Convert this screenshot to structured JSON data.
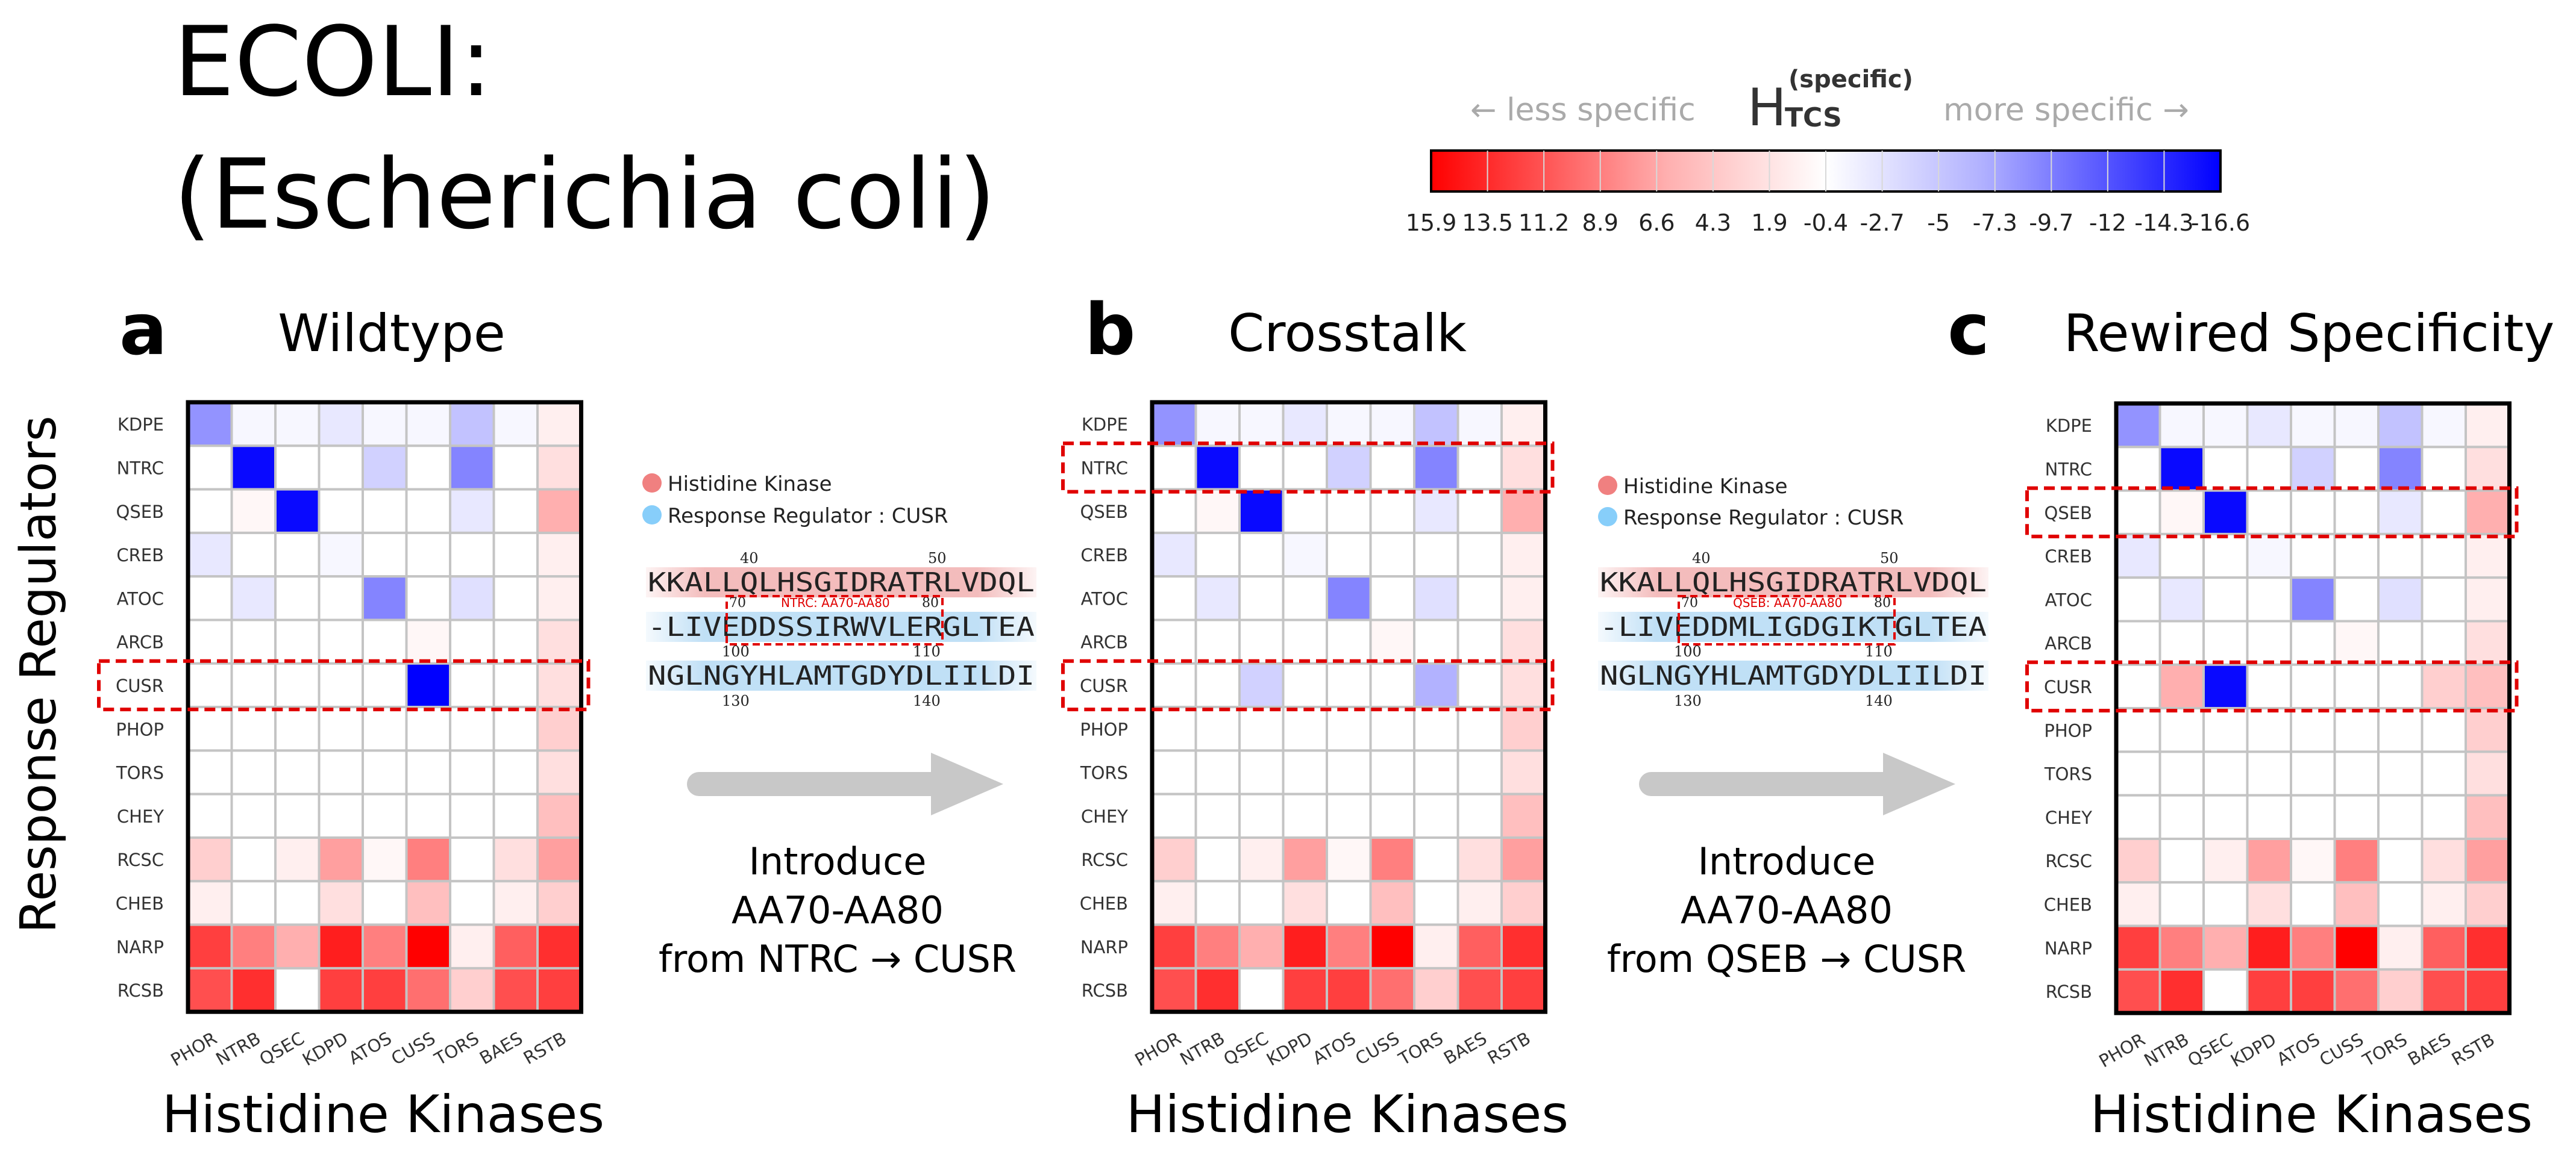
{
  "title_line1": "ECOLI:",
  "title_line2": "(Escherichia coli)",
  "colorbar": {
    "symbol": "H",
    "sub": "TCS",
    "sup": "(specific)",
    "left_note": "← less specific",
    "right_note": "more specific →",
    "ticks": [
      "15.9",
      "13.5",
      "11.2",
      "8.9",
      "6.6",
      "4.3",
      "1.9",
      "-0.4",
      "-2.7",
      "-5",
      "-7.3",
      "-9.7",
      "-12",
      "-14.3",
      "-16.6"
    ],
    "colors": {
      "positive": "#ff0000",
      "neutral": "#ffffff",
      "negative": "#0000ff"
    },
    "min": -16.6,
    "max": 15.9
  },
  "y_axis_label": "Response Regulators",
  "chart_data": {
    "type": "heatmap",
    "rows": [
      "KDPE",
      "NTRC",
      "QSEB",
      "CREB",
      "ATOC",
      "ARCB",
      "CUSR",
      "PHOP",
      "TORS",
      "CHEY",
      "RCSC",
      "CHEB",
      "NARP",
      "RCSB"
    ],
    "columns": [
      "PHOR",
      "NTRB",
      "QSEC",
      "KDPD",
      "ATOS",
      "CUSS",
      "TORS",
      "BAES",
      "RSTB"
    ],
    "xlabel": "Histidine Kinases",
    "ylabel": "Response Regulators",
    "panels": [
      {
        "letter": "a",
        "title": "Wildtype",
        "highlight_rows": [
          "CUSR"
        ],
        "values": [
          [
            -7,
            -0.5,
            -0.5,
            -1.5,
            -0.5,
            -0.5,
            -4,
            -0.5,
            1
          ],
          [
            0,
            -16,
            0,
            0,
            -3,
            0,
            -8,
            0,
            2
          ],
          [
            0,
            0.5,
            -16,
            0,
            0,
            0,
            -1.5,
            0,
            5
          ],
          [
            -1.5,
            0,
            0,
            -0.5,
            0,
            0,
            0,
            0,
            1
          ],
          [
            0,
            -1.5,
            0,
            0,
            -8,
            0,
            -2,
            0,
            1
          ],
          [
            0,
            0,
            0,
            0,
            0,
            0.5,
            0,
            0,
            2
          ],
          [
            0,
            0,
            0,
            0,
            0,
            -16.6,
            0,
            0,
            2
          ],
          [
            0,
            0,
            0,
            0,
            0,
            0,
            0,
            0,
            3
          ],
          [
            0,
            0,
            0,
            0,
            0,
            0,
            0,
            0,
            2
          ],
          [
            0,
            0,
            0,
            0,
            0,
            0,
            0,
            0,
            4
          ],
          [
            3,
            0,
            1,
            6,
            0.5,
            8,
            0,
            2,
            6
          ],
          [
            1,
            0,
            0,
            2,
            0,
            4,
            0,
            1,
            3
          ],
          [
            12,
            8,
            5,
            14,
            8,
            15.9,
            1,
            10,
            13
          ],
          [
            11,
            13,
            0,
            12,
            12,
            9,
            3,
            11,
            12
          ]
        ]
      },
      {
        "letter": "b",
        "title": "Crosstalk",
        "highlight_rows": [
          "NTRC",
          "CUSR"
        ],
        "values": [
          [
            -7,
            -0.5,
            -0.5,
            -1.5,
            -0.5,
            -0.5,
            -4,
            -0.5,
            1
          ],
          [
            0,
            -16,
            0,
            0,
            -3,
            0,
            -8,
            0,
            2
          ],
          [
            0,
            0.5,
            -16,
            0,
            0,
            0,
            -1.5,
            0,
            5
          ],
          [
            -1.5,
            0,
            0,
            -0.5,
            0,
            0,
            0,
            0,
            1
          ],
          [
            0,
            -1.5,
            0,
            0,
            -8,
            0,
            -2,
            0,
            1
          ],
          [
            0,
            0,
            0,
            0,
            0,
            0.5,
            0,
            0,
            2
          ],
          [
            0,
            0,
            -3,
            0,
            0,
            0,
            -5,
            0,
            2
          ],
          [
            0,
            0,
            0,
            0,
            0,
            0,
            0,
            0,
            3
          ],
          [
            0,
            0,
            0,
            0,
            0,
            0,
            0,
            0,
            2
          ],
          [
            0,
            0,
            0,
            0,
            0,
            0,
            0,
            0,
            4
          ],
          [
            3,
            0,
            1,
            6,
            0.5,
            8,
            0,
            2,
            6
          ],
          [
            1,
            0,
            0,
            2,
            0,
            4,
            0,
            1,
            3
          ],
          [
            12,
            8,
            5,
            14,
            8,
            15.9,
            1,
            10,
            13
          ],
          [
            11,
            13,
            0,
            12,
            12,
            9,
            3,
            11,
            12
          ]
        ]
      },
      {
        "letter": "c",
        "title": "Rewired Specificity",
        "highlight_rows": [
          "QSEB",
          "CUSR"
        ],
        "values": [
          [
            -7,
            -0.5,
            -0.5,
            -1.5,
            -0.5,
            -0.5,
            -4,
            -0.5,
            1
          ],
          [
            0,
            -16,
            0,
            0,
            -3,
            0,
            -8,
            0,
            2
          ],
          [
            0,
            0.5,
            -16,
            0,
            0,
            0,
            -1.5,
            0,
            5
          ],
          [
            -1.5,
            0,
            0,
            -0.5,
            0,
            0,
            0,
            0,
            1
          ],
          [
            0,
            -1.5,
            0,
            0,
            -8,
            0,
            -2,
            0,
            1
          ],
          [
            0,
            0,
            0,
            0,
            0,
            0.5,
            0,
            0,
            2
          ],
          [
            0,
            5,
            -16,
            0,
            0,
            0,
            0,
            3,
            4
          ],
          [
            0,
            0,
            0,
            0,
            0,
            0,
            0,
            0,
            3
          ],
          [
            0,
            0,
            0,
            0,
            0,
            0,
            0,
            0,
            2
          ],
          [
            0,
            0,
            0,
            0,
            0,
            0,
            0,
            0,
            4
          ],
          [
            3,
            0,
            1,
            6,
            0.5,
            8,
            0,
            2,
            6
          ],
          [
            1,
            0,
            0,
            2,
            0,
            4,
            0,
            1,
            3
          ],
          [
            12,
            8,
            5,
            14,
            8,
            15.9,
            1,
            10,
            13
          ],
          [
            11,
            13,
            0,
            12,
            12,
            9,
            3,
            11,
            12
          ]
        ]
      }
    ]
  },
  "insets": [
    {
      "legend_hk": "Histidine Kinase",
      "legend_rr": "Response Regulator : CUSR",
      "hk_seq": "KKALLQLHSGIDRATRLVDQL",
      "rr_seq1": "-LIVEDDSSIRWVLERGLTEA",
      "rr_seq2": "NGLNGYHLAMTGDYDLIILDI",
      "num_top_a": "40",
      "num_top_b": "50",
      "num_mid_a": "100",
      "num_mid_b": "110",
      "num_bot_a": "130",
      "num_bot_b": "140",
      "box_num_a": "70",
      "box_num_b": "80",
      "box_label": "NTRC: AA70-AA80",
      "caption1": "Introduce",
      "caption2": "AA70-AA80",
      "caption3": "from NTRC → CUSR"
    },
    {
      "legend_hk": "Histidine Kinase",
      "legend_rr": "Response Regulator : CUSR",
      "hk_seq": "KKALLQLHSGIDRATRLVDQL",
      "rr_seq1": "-LIVEDDMLIGDGIKTGLTEA",
      "rr_seq2": "NGLNGYHLAMTGDYDLIILDI",
      "num_top_a": "40",
      "num_top_b": "50",
      "num_mid_a": "100",
      "num_mid_b": "110",
      "num_bot_a": "130",
      "num_bot_b": "140",
      "box_num_a": "70",
      "box_num_b": "80",
      "box_label": "QSEB: AA70-AA80",
      "caption1": "Introduce",
      "caption2": "AA70-AA80",
      "caption3": "from QSEB → CUSR"
    }
  ]
}
